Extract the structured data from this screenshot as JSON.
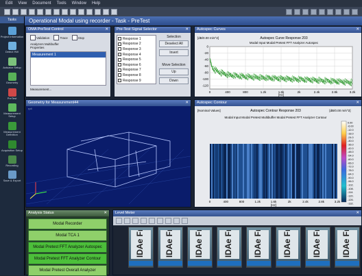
{
  "menubar": {
    "items": [
      "Edit",
      "View",
      "Document",
      "Tools",
      "Window",
      "Help"
    ]
  },
  "window": {
    "title": "Operational Modal using recorder - Task - PreTest"
  },
  "sidebar": {
    "tab": "Tasks",
    "items": [
      {
        "label": "Project Information",
        "icon": "project-info-icon",
        "color": "#5aa0d8"
      },
      {
        "label": "Detect HW",
        "icon": "detect-hw-icon",
        "color": "#6fb0e0"
      },
      {
        "label": "Actuator Setup",
        "icon": "actuator-setup-icon",
        "color": "#7cc27c"
      },
      {
        "label": "Geometry",
        "icon": "geometry-icon",
        "color": "#58b058"
      },
      {
        "label": "PreTest",
        "icon": "pretest-icon",
        "color": "#d04848"
      },
      {
        "label": "Measurement Setup",
        "icon": "measurement-setup-icon",
        "color": "#5db85d"
      },
      {
        "label": "Measurement Definition",
        "icon": "measurement-definition-icon",
        "color": "#3a9a3a"
      },
      {
        "label": "Acquisition Setup",
        "icon": "acquisition-setup-icon",
        "color": "#2f8a2f"
      },
      {
        "label": "Recording",
        "icon": "recording-icon",
        "color": "#4a8a4a"
      },
      {
        "label": "Save & Export",
        "icon": "save-export-icon",
        "color": "#6a9ac8"
      }
    ]
  },
  "pretest_control": {
    "title": "OMA PreTest Control",
    "options": [
      "Validation",
      "Trace",
      "Stop"
    ],
    "analyzer_label": "Analyzers Multibuffer Properties",
    "list_items": [
      "Measurement 1"
    ],
    "footer": "Measurement..."
  },
  "signal_selector": {
    "title": "Pre-Test Signal Selector",
    "responses": [
      "Response 1",
      "Response 2",
      "Response 3",
      "Response 4",
      "Response 5",
      "Response 6",
      "Response 7",
      "Response 8",
      "Response 9"
    ],
    "selection_label": "Selection",
    "deselect_all": "Deselect All",
    "invert": "Invert",
    "move_label": "Move Selection",
    "up": "Up",
    "down": "Down"
  },
  "autospec_curves": {
    "title": "Autospec Curves",
    "unit": "[dB/0.00 m/s^2]",
    "chart_title": "Autospec Curve Response 203",
    "legend": "Modal  Input  Modal Pretest FFT Analyzer Autospec",
    "xunit": "[Hz]"
  },
  "geometry": {
    "title": "Geometry for Measurement44",
    "corner": "rp4"
  },
  "autospec_contour": {
    "title": "Autospec Contour",
    "left_label": "[Nominal Values]",
    "chart_title": "Autospec Contour Response 203",
    "unit": "[dB/0.00 m/s^2]",
    "legend": "Modal  Input  Modal Pretest Multibuffer  Modal Pretest FFT Analyzer Contour",
    "xunit": "[Hz]",
    "scale": [
      "0.00",
      "-6.00",
      "-12.0",
      "-18.0",
      "-24.0",
      "-30.0",
      "-36.0",
      "-42.0",
      "-48.0",
      "-54.0",
      "-60.0",
      "-66.0",
      "-72.0",
      "-78.0",
      "-84.0",
      "-90.0",
      "-96.0",
      "-102.",
      "-108.",
      "-114.",
      "-120.",
      "-126.",
      "-132."
    ]
  },
  "analysis_status": {
    "title": "Analysis Status",
    "items": [
      "Modal Recorder",
      "Modal TCA 1",
      "Modal Pretest FFT Analyzer Autospec",
      "Modal Pretest FFT Analyzer Contour",
      "Modal Pretest Overall Analyzer"
    ]
  },
  "level_meter": {
    "title": "Level Meter",
    "meter_label": "IDAe Fr",
    "count": 8
  },
  "chart_data": [
    {
      "type": "line",
      "title": "Autospec Curve Response 203",
      "ylabel": "[dB/0.00 m/s^2]",
      "xlabel": "[Hz]",
      "x_ticks": [
        "0",
        "400",
        "800",
        "1.2k",
        "1.6k",
        "2k",
        "2.4k",
        "2.8k",
        "3.2k"
      ],
      "y_ticks": [
        "0",
        "-20",
        "-40",
        "-60",
        "-80",
        "-100",
        "-120"
      ],
      "xlim": [
        0,
        3200
      ],
      "ylim": [
        -130,
        0
      ],
      "series": [
        {
          "values": [
            [
              0,
              -40
            ],
            [
              50,
              -62
            ],
            [
              100,
              -70
            ],
            [
              200,
              -78
            ],
            [
              400,
              -86
            ],
            [
              800,
              -92
            ],
            [
              1200,
              -95
            ],
            [
              1600,
              -98
            ],
            [
              2000,
              -100
            ],
            [
              2400,
              -103
            ],
            [
              2800,
              -106
            ],
            [
              3200,
              -110
            ]
          ]
        }
      ]
    },
    {
      "type": "heatmap",
      "title": "Autospec Contour Response 203",
      "xlabel": "[Hz]",
      "x_ticks": [
        "0",
        "400",
        "800",
        "1.2k",
        "1.6k",
        "2k",
        "2.4k",
        "2.8k",
        "3.2k"
      ],
      "xlim": [
        0,
        3200
      ],
      "colorbar": [
        0,
        -132
      ]
    }
  ]
}
